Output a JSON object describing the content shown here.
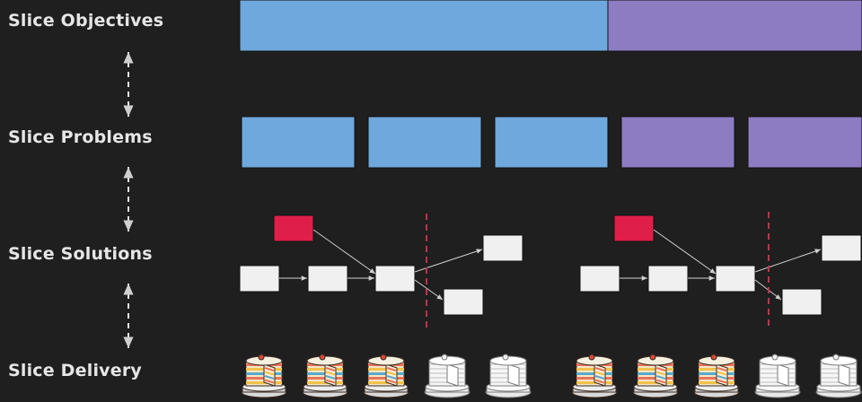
{
  "labels": {
    "objectives": "Slice Objectives",
    "problems": "Slice Problems",
    "solutions": "Slice Solutions",
    "delivery": "Slice Delivery"
  },
  "colors": {
    "background": "#1f1f1f",
    "label_text": "#e6e6e6",
    "blue": "#6fa8dc",
    "purple": "#8e7cc3",
    "red_box": "#e01e4a",
    "white_box": "#f0f0f0",
    "divider": "#c0324d",
    "arrow": "#cfcfcf"
  },
  "groups": [
    {
      "objective_color": "blue",
      "problem_count": 3
    },
    {
      "objective_color": "purple",
      "problem_count": 2
    }
  ],
  "cakes": [
    {
      "state": "colored"
    },
    {
      "state": "colored"
    },
    {
      "state": "colored"
    },
    {
      "state": "outline"
    },
    {
      "state": "outline"
    },
    {
      "state": "colored"
    },
    {
      "state": "colored"
    },
    {
      "state": "colored"
    },
    {
      "state": "outline"
    },
    {
      "state": "outline"
    }
  ]
}
